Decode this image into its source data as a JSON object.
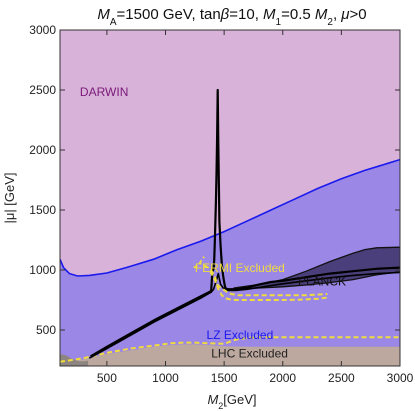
{
  "chart_data": {
    "type": "area",
    "title": "M_A=1500 GeV, tanβ=10, M_1=0.5 M_2, μ>0",
    "title_parts": {
      "ma_symbol": "M",
      "ma_sub": "A",
      "ma_value": "=1500 GeV, tan",
      "beta": "β",
      "tanb_value": "=10, ",
      "m1_symbol": "M",
      "m1_sub": "1",
      "m1_mid": "=0.5 ",
      "m2_symbol": "M",
      "m2_sub": "2",
      "mu_part": ", ",
      "mu_symbol": "μ",
      "mu_cond": ">0"
    },
    "xlabel": {
      "symbol": "M",
      "sub": "2",
      "unit": "[GeV]"
    },
    "ylabel": "|μ| [GeV]",
    "xlim": [
      100,
      3000
    ],
    "ylim": [
      200,
      3000
    ],
    "xticks": [
      500,
      1000,
      1500,
      2000,
      2500,
      3000
    ],
    "xtick_labels": [
      "500",
      "1000",
      "1500",
      "2000",
      "2500",
      "3000"
    ],
    "yticks": [
      500,
      1000,
      1500,
      2000,
      2500,
      3000
    ],
    "ytick_labels": [
      "500",
      "1000",
      "1500",
      "2000",
      "2500",
      "3000"
    ],
    "grid": false,
    "legend": "none",
    "colors": {
      "darwin_fill": "#d8b2d8",
      "lz_fill": "#9b87e6",
      "lz_line": "#1a1aee",
      "planck_fill": "#4a3f7a",
      "planck_line": "#111111",
      "lhc_fill": "#bca89e",
      "lhc_dark": "#8c8580",
      "fermi_line": "#f0dc3c",
      "relic_line": "#000000",
      "darwin_text": "#7a1a7a",
      "lz_text": "#1a1aee",
      "fermi_text": "#f0dc3c",
      "planck_text": "#111111",
      "lhc_text": "#222222"
    },
    "regions": [
      {
        "name": "DARWIN",
        "label": "DARWIN",
        "label_at": [
          270,
          2450
        ]
      },
      {
        "name": "LZ",
        "label": "LZ Excluded",
        "label_at": [
          1350,
          425
        ]
      },
      {
        "name": "FERMI",
        "label": "FERMI Excluded",
        "label_at": [
          1250,
          985
        ]
      },
      {
        "name": "PLANCK",
        "label": "PLANCK",
        "label_at": [
          2130,
          870
        ]
      },
      {
        "name": "LHC",
        "label": "LHC Excluded",
        "label_at": [
          1390,
          270
        ]
      }
    ],
    "lz_boundary": {
      "x": [
        100,
        130,
        180,
        250,
        350,
        500,
        700,
        900,
        1100,
        1300,
        1500,
        1700,
        1900,
        2100,
        2300,
        2500,
        2700,
        2900,
        3000
      ],
      "y": [
        1090,
        1020,
        970,
        950,
        955,
        975,
        1030,
        1090,
        1170,
        1240,
        1320,
        1410,
        1500,
        1590,
        1680,
        1760,
        1830,
        1890,
        1920
      ]
    },
    "relic_line": {
      "x": [
        360,
        500,
        700,
        900,
        1100,
        1300,
        1380,
        1390,
        1400,
        1410,
        1415,
        1420,
        1425,
        1430,
        1435,
        1440,
        1445,
        1450,
        1455,
        1460,
        1470,
        1480,
        1490,
        1500,
        1510,
        1530,
        1600,
        1700,
        1800,
        1900,
        2000,
        2200,
        2400,
        2600,
        2800,
        3000
      ],
      "y": [
        280,
        360,
        470,
        580,
        680,
        780,
        820,
        830,
        990,
        1010,
        1080,
        1230,
        1380,
        1560,
        1800,
        2100,
        2500,
        2050,
        1700,
        1400,
        1200,
        1050,
        960,
        900,
        850,
        840,
        840,
        855,
        880,
        900,
        910,
        940,
        970,
        990,
        1010,
        1020
      ]
    },
    "relic_line_lower": {
      "x": [
        350,
        500,
        700,
        900,
        1100,
        1300,
        1370,
        1390,
        1410,
        1430,
        1450,
        1470,
        1500,
        1520,
        1600,
        1700,
        1800,
        1900,
        2000,
        2200,
        2400,
        2600,
        2800,
        3000
      ],
      "y": [
        265,
        345,
        455,
        565,
        665,
        765,
        805,
        815,
        840,
        900,
        970,
        880,
        840,
        830,
        830,
        840,
        855,
        870,
        885,
        910,
        935,
        955,
        970,
        980
      ]
    },
    "planck_band": {
      "upper_x": [
        1580,
        1800,
        2000,
        2200,
        2400,
        2600,
        2700,
        2800,
        3000
      ],
      "upper_y": [
        850,
        880,
        920,
        990,
        1070,
        1140,
        1170,
        1185,
        1190
      ],
      "lower_x": [
        1580,
        1800,
        2000,
        2200,
        2400,
        2600,
        2700,
        2800,
        3000
      ],
      "lower_y": [
        840,
        850,
        860,
        875,
        895,
        920,
        940,
        960,
        985
      ]
    },
    "fermi_upper": {
      "x": [
        1330,
        1380,
        1420,
        1440,
        1460,
        1490,
        1520,
        1560,
        1620,
        1700,
        1800,
        1900,
        2000,
        2100,
        2200,
        2300,
        2380
      ],
      "y": [
        1040,
        1010,
        950,
        880,
        860,
        840,
        820,
        800,
        790,
        790,
        790,
        790,
        790,
        790,
        790,
        795,
        800
      ]
    },
    "fermi_lower": {
      "x": [
        1380,
        1420,
        1450,
        1480,
        1510,
        1550,
        1600,
        1700,
        1800,
        1900,
        2000,
        2100,
        2200,
        2300,
        2380
      ],
      "y": [
        990,
        920,
        840,
        790,
        765,
        755,
        750,
        750,
        750,
        750,
        750,
        752,
        755,
        760,
        770
      ]
    },
    "fermi_small": {
      "x": [
        1240,
        1265,
        1290,
        1310,
        1330
      ],
      "y": [
        1020,
        1030,
        1050,
        1090,
        1110
      ]
    },
    "lhc_boundary": {
      "x": [
        100,
        300,
        500,
        700,
        900,
        1050,
        1150,
        1250,
        1350,
        1500,
        1700,
        1900,
        2100,
        2300,
        2500,
        2700,
        2900,
        3000
      ],
      "y": [
        225,
        255,
        300,
        330,
        360,
        375,
        380,
        380,
        375,
        365,
        360,
        360,
        360,
        360,
        360,
        360,
        360,
        360
      ]
    },
    "lhc_dark_patch": {
      "x": [
        100,
        150,
        200,
        260,
        310,
        340,
        340,
        100
      ],
      "y": [
        300,
        290,
        260,
        240,
        240,
        245,
        200,
        200
      ]
    },
    "lz_edge_dashed": {
      "x": [
        100,
        300,
        500,
        700,
        900,
        1050,
        1150,
        1250,
        1350,
        1500,
        1600,
        1700,
        1800,
        1900,
        2000,
        2100,
        2200,
        2300,
        2400,
        2500,
        2600,
        2700,
        2800,
        2900,
        3000
      ],
      "y": [
        235,
        265,
        310,
        345,
        370,
        390,
        395,
        395,
        390,
        385,
        420,
        435,
        440,
        440,
        440,
        440,
        440,
        440,
        440,
        440,
        440,
        440,
        440,
        440,
        440
      ]
    }
  }
}
